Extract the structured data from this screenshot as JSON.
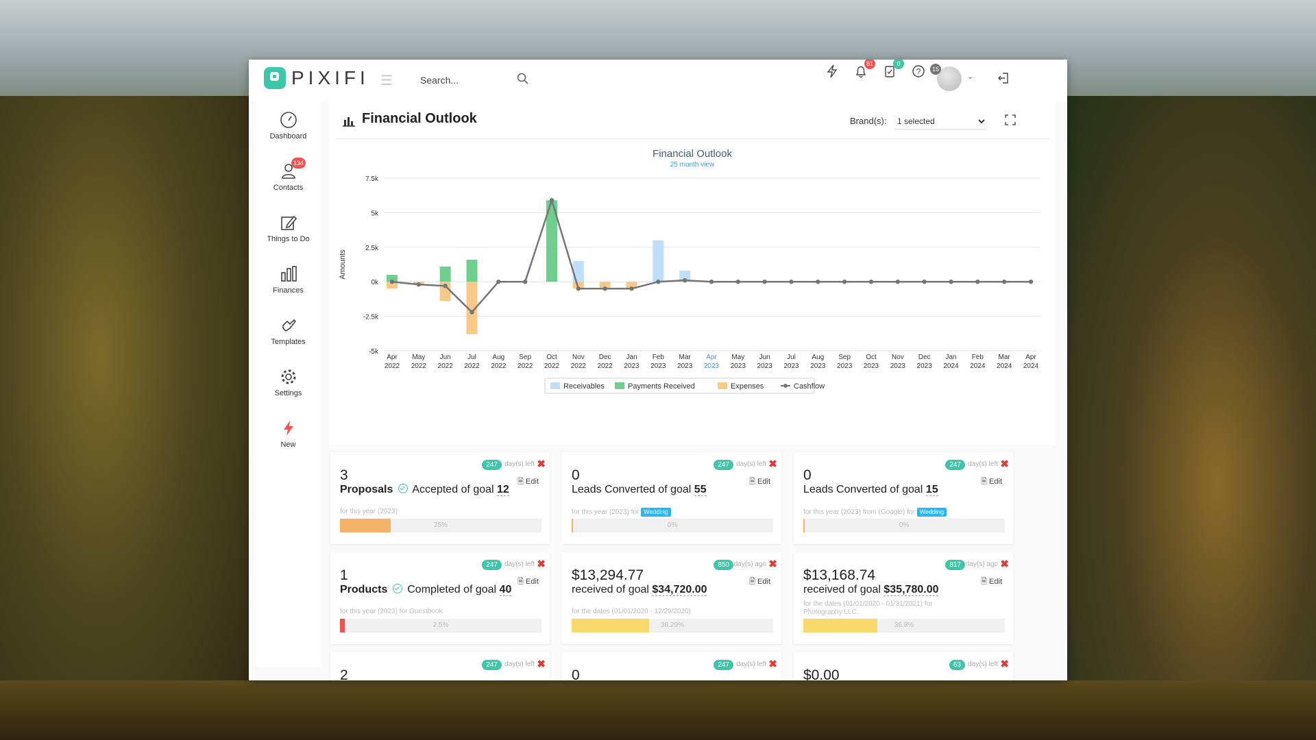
{
  "app": {
    "logo_text": "PIXIFI"
  },
  "search": {
    "placeholder": "Search..."
  },
  "header": {
    "notifications_badge": "81",
    "tasks_badge": "0",
    "avatar_badge": "15"
  },
  "sidebar": {
    "items": [
      {
        "label": "Dashboard"
      },
      {
        "label": "Contacts",
        "badge": "134"
      },
      {
        "label": "Things to Do"
      },
      {
        "label": "Finances"
      },
      {
        "label": "Templates"
      },
      {
        "label": "Settings"
      },
      {
        "label": "New"
      }
    ]
  },
  "outlook": {
    "title": "Financial Outlook",
    "brand_label": "Brand(s):",
    "brand_value": "1 selected"
  },
  "colors": {
    "receivables": "#bfe0f8",
    "payments": "#6fcf8e",
    "expenses": "#f7c98a",
    "cashflow": "#757575",
    "accent": "#3ec6a8",
    "close": "#e53935"
  },
  "chart_data": {
    "type": "bar",
    "title": "Financial Outlook",
    "subtitle": "25 month view",
    "ylabel": "Amounts",
    "ylim": [
      -5000,
      7500
    ],
    "yticks": [
      7500,
      5000,
      2500,
      0,
      -2500,
      -5000
    ],
    "ytick_labels": [
      "7.5k",
      "5k",
      "2.5k",
      "0k",
      "-2.5k",
      "-5k"
    ],
    "categories": [
      "Apr|2022",
      "May|2022",
      "Jun|2022",
      "Jul|2022",
      "Aug|2022",
      "Sep|2022",
      "Oct|2022",
      "Nov|2022",
      "Dec|2022",
      "Jan|2023",
      "Feb|2023",
      "Mar|2023",
      "Apr|2023",
      "May|2023",
      "Jun|2023",
      "Jul|2023",
      "Aug|2023",
      "Sep|2023",
      "Oct|2023",
      "Nov|2023",
      "Dec|2023",
      "Jan|2024",
      "Feb|2024",
      "Mar|2024",
      "Apr|2024"
    ],
    "highlight_index": 12,
    "legend": [
      "Receivables",
      "Payments Received",
      "Expenses",
      "Cashflow"
    ],
    "series": [
      {
        "name": "Receivables",
        "values": [
          0,
          0,
          0,
          0,
          0,
          0,
          0,
          1500,
          0,
          0,
          3000,
          800,
          0,
          0,
          0,
          0,
          0,
          0,
          0,
          0,
          0,
          0,
          0,
          0,
          0
        ]
      },
      {
        "name": "Payments Received",
        "values": [
          500,
          0,
          1100,
          1600,
          0,
          0,
          5900,
          0,
          0,
          0,
          0,
          0,
          0,
          0,
          0,
          0,
          0,
          0,
          0,
          0,
          0,
          0,
          0,
          0,
          0
        ]
      },
      {
        "name": "Expenses",
        "values": [
          -500,
          -200,
          -1400,
          -3800,
          0,
          0,
          0,
          -500,
          -500,
          -500,
          0,
          0,
          0,
          0,
          0,
          0,
          0,
          0,
          0,
          0,
          0,
          0,
          0,
          0,
          0
        ]
      },
      {
        "name": "Cashflow",
        "values": [
          0,
          -200,
          -300,
          -2200,
          0,
          0,
          5900,
          -500,
          -500,
          -500,
          0,
          100,
          0,
          0,
          0,
          0,
          0,
          0,
          0,
          0,
          0,
          0,
          0,
          0,
          0
        ]
      }
    ]
  },
  "goals": [
    {
      "pill": "247",
      "days": "day(s) left",
      "value": "3",
      "label1": "Proposals",
      "label2": "Accepted of goal",
      "goal": "12",
      "check": true,
      "sub": "for this year (2023)",
      "tag": "",
      "progress": 0.25,
      "pct": "25%",
      "fill": "#f7b26a",
      "edit": "Edit"
    },
    {
      "pill": "247",
      "days": "day(s) left",
      "value": "0",
      "label1": "",
      "label2": "Leads Converted of goal",
      "goal": "55",
      "check": false,
      "sub": "for this year (2023) for",
      "tag": "Wedding",
      "progress": 0,
      "pct": "0%",
      "fill": "#f7b26a",
      "edit": "Edit"
    },
    {
      "pill": "247",
      "days": "day(s) left",
      "value": "0",
      "label1": "",
      "label2": "Leads Converted of goal",
      "goal": "15",
      "check": false,
      "sub": "for this year (2023) from (Google) for",
      "tag": "Wedding",
      "progress": 0,
      "pct": "0%",
      "fill": "#f7b26a",
      "edit": "Edit"
    },
    {
      "pill": "247",
      "days": "day(s) left",
      "value": "1",
      "label1": "Products",
      "label2": "Completed of goal",
      "goal": "40",
      "check": true,
      "sub": "for this year (2023) for Guestbook",
      "tag": "",
      "progress": 0.025,
      "pct": "2.5%",
      "fill": "#ef5350",
      "edit": "Edit"
    },
    {
      "pill": "850",
      "days": "day(s) ago",
      "value": "$13,294.77",
      "label1": "",
      "label2": "received of goal",
      "goal": "$34,720.00",
      "check": false,
      "sub": "for the dates (01/01/2020 - 12/29/2020)",
      "tag": "",
      "progress": 0.3829,
      "pct": "38.29%",
      "fill": "#f9d96b",
      "edit": "Edit"
    },
    {
      "pill": "817",
      "days": "day(s) ago",
      "value": "$13,168.74",
      "label1": "",
      "label2": "received of goal",
      "goal": "$35,780.00",
      "check": false,
      "sub": "for the dates (01/01/2020 - 01/31/2021) for",
      "sub2": "Photography LLC.",
      "tag": "",
      "progress": 0.368,
      "pct": "36.8%",
      "fill": "#f9d96b",
      "edit": "Edit"
    },
    {
      "pill": "247",
      "days": "day(s) left",
      "value": "2"
    },
    {
      "pill": "247",
      "days": "day(s) left",
      "value": "0"
    },
    {
      "pill": "63",
      "days": "day(s) left",
      "value": "$0.00"
    }
  ]
}
